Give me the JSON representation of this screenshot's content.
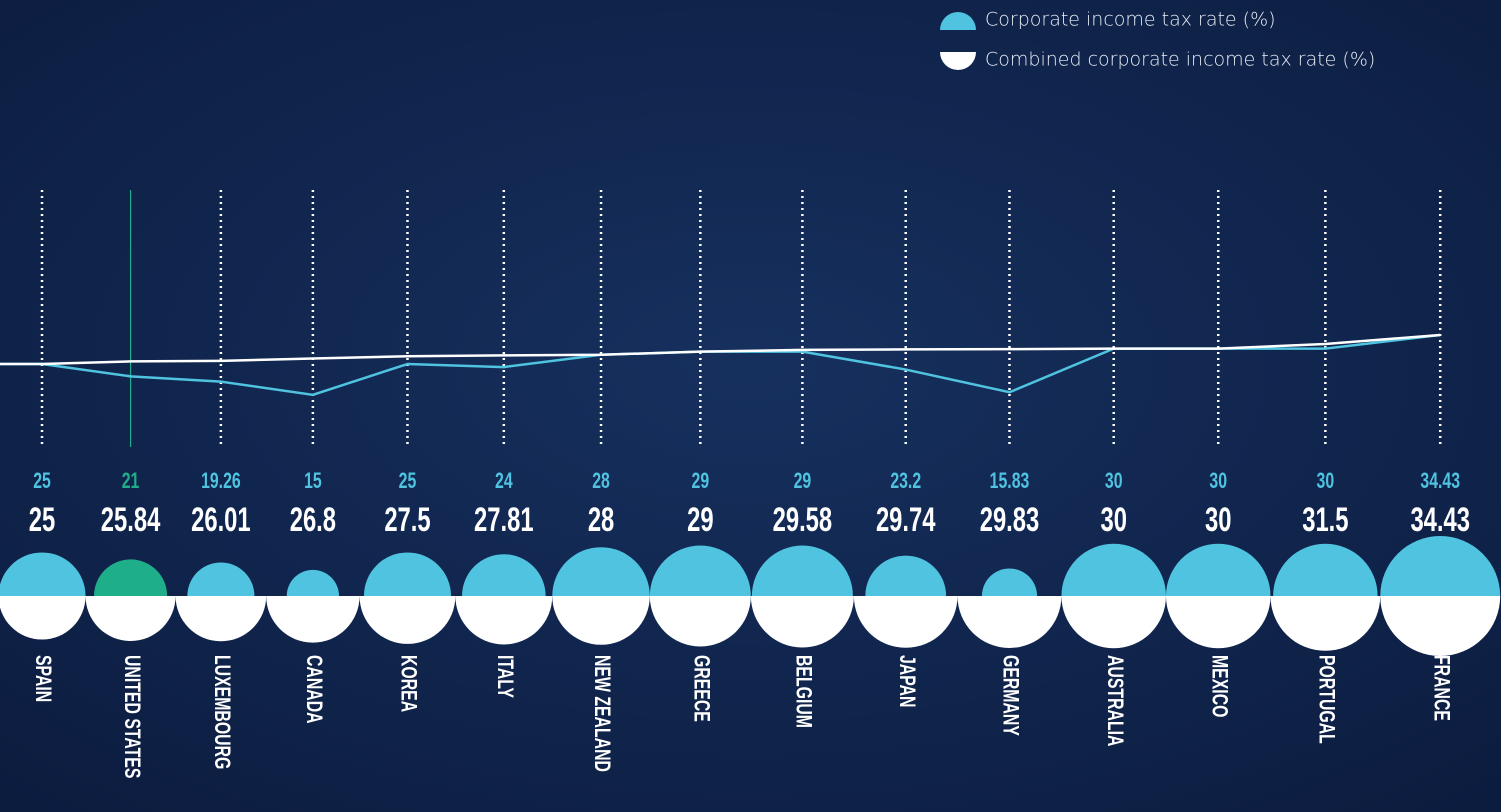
{
  "chart_data": {
    "type": "line-bubble",
    "categories": [
      "SPAIN",
      "UNITED STATES",
      "LUXEMBOURG",
      "CANADA",
      "KOREA",
      "ITALY",
      "NEW ZEALAND",
      "GREECE",
      "BELGIUM",
      "JAPAN",
      "GERMANY",
      "AUSTRALIA",
      "MEXICO",
      "PORTUGAL",
      "FRANCE"
    ],
    "series": [
      {
        "name": "Corporate income tax rate (%)",
        "color": "#4fc3df",
        "point_colors": [
          "#4fc3df",
          "#1fae8a",
          "#4fc3df",
          "#4fc3df",
          "#4fc3df",
          "#4fc3df",
          "#4fc3df",
          "#4fc3df",
          "#4fc3df",
          "#4fc3df",
          "#4fc3df",
          "#4fc3df",
          "#4fc3df",
          "#4fc3df",
          "#4fc3df"
        ],
        "values": [
          25,
          21,
          19.26,
          15,
          25,
          24,
          28,
          29,
          29,
          23.2,
          15.83,
          30,
          30,
          30,
          34.43
        ]
      },
      {
        "name": "Combined corporate income tax rate (%)",
        "color": "#ffffff",
        "values": [
          25,
          25.84,
          26.01,
          26.8,
          27.5,
          27.81,
          28,
          29,
          29.58,
          29.74,
          29.83,
          30,
          30,
          31.5,
          34.43
        ]
      }
    ]
  }
}
